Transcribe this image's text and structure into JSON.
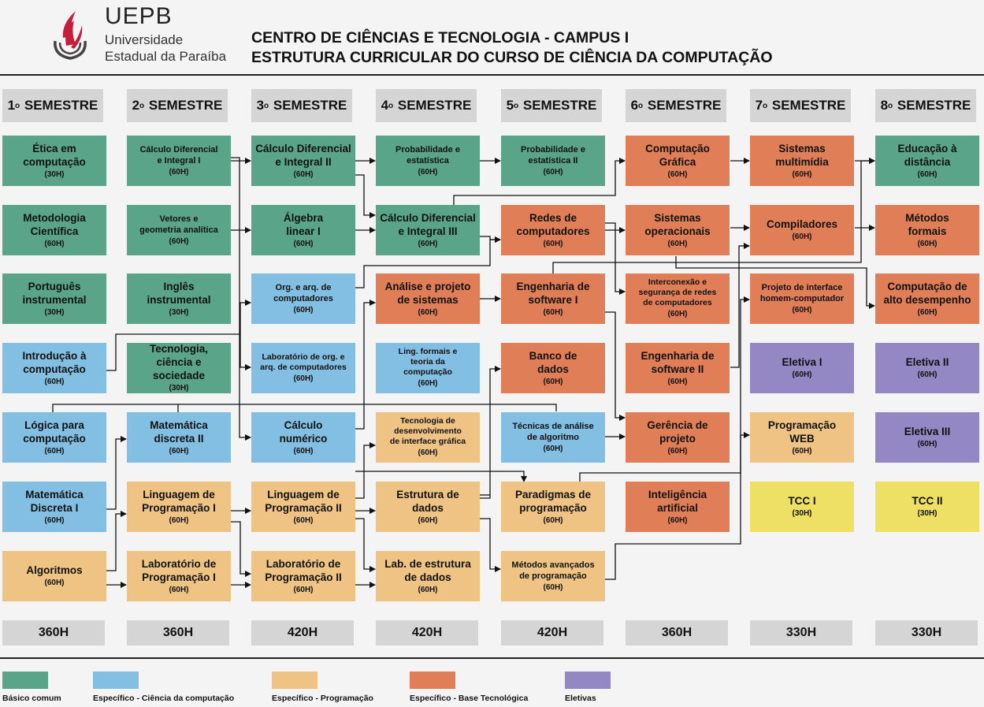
{
  "header": {
    "brand": "UEPB",
    "university_line1": "Universidade",
    "university_line2": "Estadual da Paraíba",
    "title_line1": "CENTRO DE CIÊNCIAS E TECNOLOGIA - CAMPUS I",
    "title_line2": "ESTRUTURA CURRICULAR DO CURSO DE CIÊNCIA DA COMPUTAÇÃO"
  },
  "colors": {
    "basico": "#5aa58a",
    "ciencia": "#83bfe2",
    "programacao": "#eec384",
    "tecnologica": "#e07f57",
    "eletivas": "#9488c4",
    "tcc": "#ede064"
  },
  "semesters": [
    {
      "num": "1",
      "label": "SEMESTRE",
      "total": "360H"
    },
    {
      "num": "2",
      "label": "SEMESTRE",
      "total": "360H"
    },
    {
      "num": "3",
      "label": "SEMESTRE",
      "total": "420H"
    },
    {
      "num": "4",
      "label": "SEMESTRE",
      "total": "420H"
    },
    {
      "num": "5",
      "label": "SEMESTRE",
      "total": "420H"
    },
    {
      "num": "6",
      "label": "SEMESTRE",
      "total": "360H"
    },
    {
      "num": "7",
      "label": "SEMESTRE",
      "total": "330H"
    },
    {
      "num": "8",
      "label": "SEMESTRE",
      "total": "330H"
    }
  ],
  "courses": [
    {
      "id": "etica",
      "name": "Ética em\ncomputação",
      "hours": "(30H)",
      "cat": "basico"
    },
    {
      "id": "metodologia",
      "name": "Metodologia\nCientífica",
      "hours": "(60H)",
      "cat": "basico"
    },
    {
      "id": "portugues",
      "name": "Português\ninstrumental",
      "hours": "(30H)",
      "cat": "basico"
    },
    {
      "id": "intro",
      "name": "Introdução à\ncomputação",
      "hours": "(60H)",
      "cat": "ciencia"
    },
    {
      "id": "logica",
      "name": "Lógica para\ncomputação",
      "hours": "(60H)",
      "cat": "ciencia"
    },
    {
      "id": "matdisc1",
      "name": "Matemática\nDiscreta I",
      "hours": "(60H)",
      "cat": "ciencia"
    },
    {
      "id": "algoritmos",
      "name": "Algoritmos",
      "hours": "(60H)",
      "cat": "programacao"
    },
    {
      "id": "calc1",
      "name": "Cálculo Diferencial\ne Integral I",
      "hours": "(60H)",
      "cat": "basico",
      "size": "sm"
    },
    {
      "id": "vetores",
      "name": "Vetores e\ngeometria analítica",
      "hours": "(60H)",
      "cat": "basico",
      "size": "sm"
    },
    {
      "id": "ingles",
      "name": "Inglês\ninstrumental",
      "hours": "(30H)",
      "cat": "basico"
    },
    {
      "id": "tecsoc",
      "name": "Tecnologia,\nciência e sociedade",
      "hours": "(30H)",
      "cat": "basico"
    },
    {
      "id": "matdisc2",
      "name": "Matemática\ndiscreta II",
      "hours": "(60H)",
      "cat": "ciencia"
    },
    {
      "id": "lp1",
      "name": "Linguagem de\nProgramação I",
      "hours": "(60H)",
      "cat": "programacao"
    },
    {
      "id": "labp1",
      "name": "Laboratório de\nProgramação I",
      "hours": "(60H)",
      "cat": "programacao"
    },
    {
      "id": "calc2",
      "name": "Cálculo Diferencial\ne Integral II",
      "hours": "(60H)",
      "cat": "basico"
    },
    {
      "id": "algebra",
      "name": "Álgebra\nlinear I",
      "hours": "(60H)",
      "cat": "basico"
    },
    {
      "id": "orgarq",
      "name": "Org. e arq. de\ncomputadores",
      "hours": "(60H)",
      "cat": "ciencia",
      "size": "sm"
    },
    {
      "id": "laborg",
      "name": "Laboratório de org. e\narq. de computadores",
      "hours": "(60H)",
      "cat": "ciencia",
      "size": "xs"
    },
    {
      "id": "calcnum",
      "name": "Cálculo\nnumérico",
      "hours": "(60H)",
      "cat": "ciencia"
    },
    {
      "id": "lp2",
      "name": "Linguagem de\nProgramação II",
      "hours": "(60H)",
      "cat": "programacao"
    },
    {
      "id": "labp2",
      "name": "Laboratório de\nProgramação II",
      "hours": "(60H)",
      "cat": "programacao"
    },
    {
      "id": "prob",
      "name": "Probabilidade e\nestatística",
      "hours": "(60H)",
      "cat": "basico",
      "size": "sm"
    },
    {
      "id": "calc3",
      "name": "Cálculo Diferencial\ne Integral III",
      "hours": "(60H)",
      "cat": "basico"
    },
    {
      "id": "aps",
      "name": "Análise e projeto\nde sistemas",
      "hours": "(60H)",
      "cat": "tecnologica"
    },
    {
      "id": "lfa",
      "name": "Ling. formais e\nteoria da\ncomputação",
      "hours": "(60H)",
      "cat": "ciencia",
      "size": "xs"
    },
    {
      "id": "tdig",
      "name": "Tecnologia de\ndesenvolvimento\nde interface gráfica",
      "hours": "(60H)",
      "cat": "programacao",
      "size": "xs"
    },
    {
      "id": "ed",
      "name": "Estrutura de\ndados",
      "hours": "(60H)",
      "cat": "programacao"
    },
    {
      "id": "labed",
      "name": "Lab. de estrutura\nde dados",
      "hours": "(60H)",
      "cat": "programacao"
    },
    {
      "id": "prob2",
      "name": "Probabilidade e\nestatística II",
      "hours": "(60H)",
      "cat": "basico",
      "size": "sm"
    },
    {
      "id": "redes",
      "name": "Redes de\ncomputadores",
      "hours": "(60H)",
      "cat": "tecnologica"
    },
    {
      "id": "es1",
      "name": "Engenharia de\nsoftware I",
      "hours": "(60H)",
      "cat": "tecnologica"
    },
    {
      "id": "bd",
      "name": "Banco de\ndados",
      "hours": "(60H)",
      "cat": "tecnologica"
    },
    {
      "id": "taa",
      "name": "Técnicas de análise\nde algoritmo",
      "hours": "(60H)",
      "cat": "ciencia",
      "size": "sm"
    },
    {
      "id": "paradigmas",
      "name": "Paradigmas de\nprogramação",
      "hours": "(60H)",
      "cat": "programacao"
    },
    {
      "id": "map",
      "name": "Métodos avançados\nde programação",
      "hours": "(60H)",
      "cat": "programacao",
      "size": "sm"
    },
    {
      "id": "cg",
      "name": "Computação\nGráfica",
      "hours": "(60H)",
      "cat": "tecnologica"
    },
    {
      "id": "so",
      "name": "Sistemas\noperacionais",
      "hours": "(60H)",
      "cat": "tecnologica"
    },
    {
      "id": "isrc",
      "name": "Interconexão e\nsegurança de redes\nde computadores",
      "hours": "(60H)",
      "cat": "tecnologica",
      "size": "xs"
    },
    {
      "id": "es2",
      "name": "Engenharia de\nsoftware II",
      "hours": "(60H)",
      "cat": "tecnologica"
    },
    {
      "id": "gp",
      "name": "Gerência de\nprojeto",
      "hours": "(60H)",
      "cat": "tecnologica"
    },
    {
      "id": "ia",
      "name": "Inteligência\nartificial",
      "hours": "(60H)",
      "cat": "tecnologica"
    },
    {
      "id": "sm",
      "name": "Sistemas\nmultimídia",
      "hours": "(60H)",
      "cat": "tecnologica"
    },
    {
      "id": "comp",
      "name": "Compiladores",
      "hours": "(60H)",
      "cat": "tecnologica"
    },
    {
      "id": "ihc",
      "name": "Projeto de interface\nhomem-computador",
      "hours": "(60H)",
      "cat": "tecnologica",
      "size": "sm"
    },
    {
      "id": "el1",
      "name": "Eletiva I",
      "hours": "(60H)",
      "cat": "eletivas"
    },
    {
      "id": "web",
      "name": "Programação\nWEB",
      "hours": "(60H)",
      "cat": "programacao"
    },
    {
      "id": "tcc1",
      "name": "TCC I",
      "hours": "(30H)",
      "cat": "tcc"
    },
    {
      "id": "ead",
      "name": "Educação à\ndistância",
      "hours": "(60H)",
      "cat": "basico"
    },
    {
      "id": "mf",
      "name": "Métodos\nformais",
      "hours": "(60H)",
      "cat": "tecnologica"
    },
    {
      "id": "cad",
      "name": "Computação de\nalto desempenho",
      "hours": "(60H)",
      "cat": "tecnologica"
    },
    {
      "id": "el2",
      "name": "Eletiva II",
      "hours": "(60H)",
      "cat": "eletivas"
    },
    {
      "id": "el3",
      "name": "Eletiva III",
      "hours": "(60H)",
      "cat": "eletivas"
    },
    {
      "id": "tcc2",
      "name": "TCC II",
      "hours": "(30H)",
      "cat": "tcc"
    }
  ],
  "legend": [
    {
      "label": "Básico comum",
      "cat": "basico"
    },
    {
      "label": "Específico - Ciência da computação",
      "cat": "ciencia"
    },
    {
      "label": "Específico - Programação",
      "cat": "programacao"
    },
    {
      "label": "Específico - Base Tecnológica",
      "cat": "tecnologica"
    },
    {
      "label": "Eletivas",
      "cat": "eletivas"
    }
  ]
}
